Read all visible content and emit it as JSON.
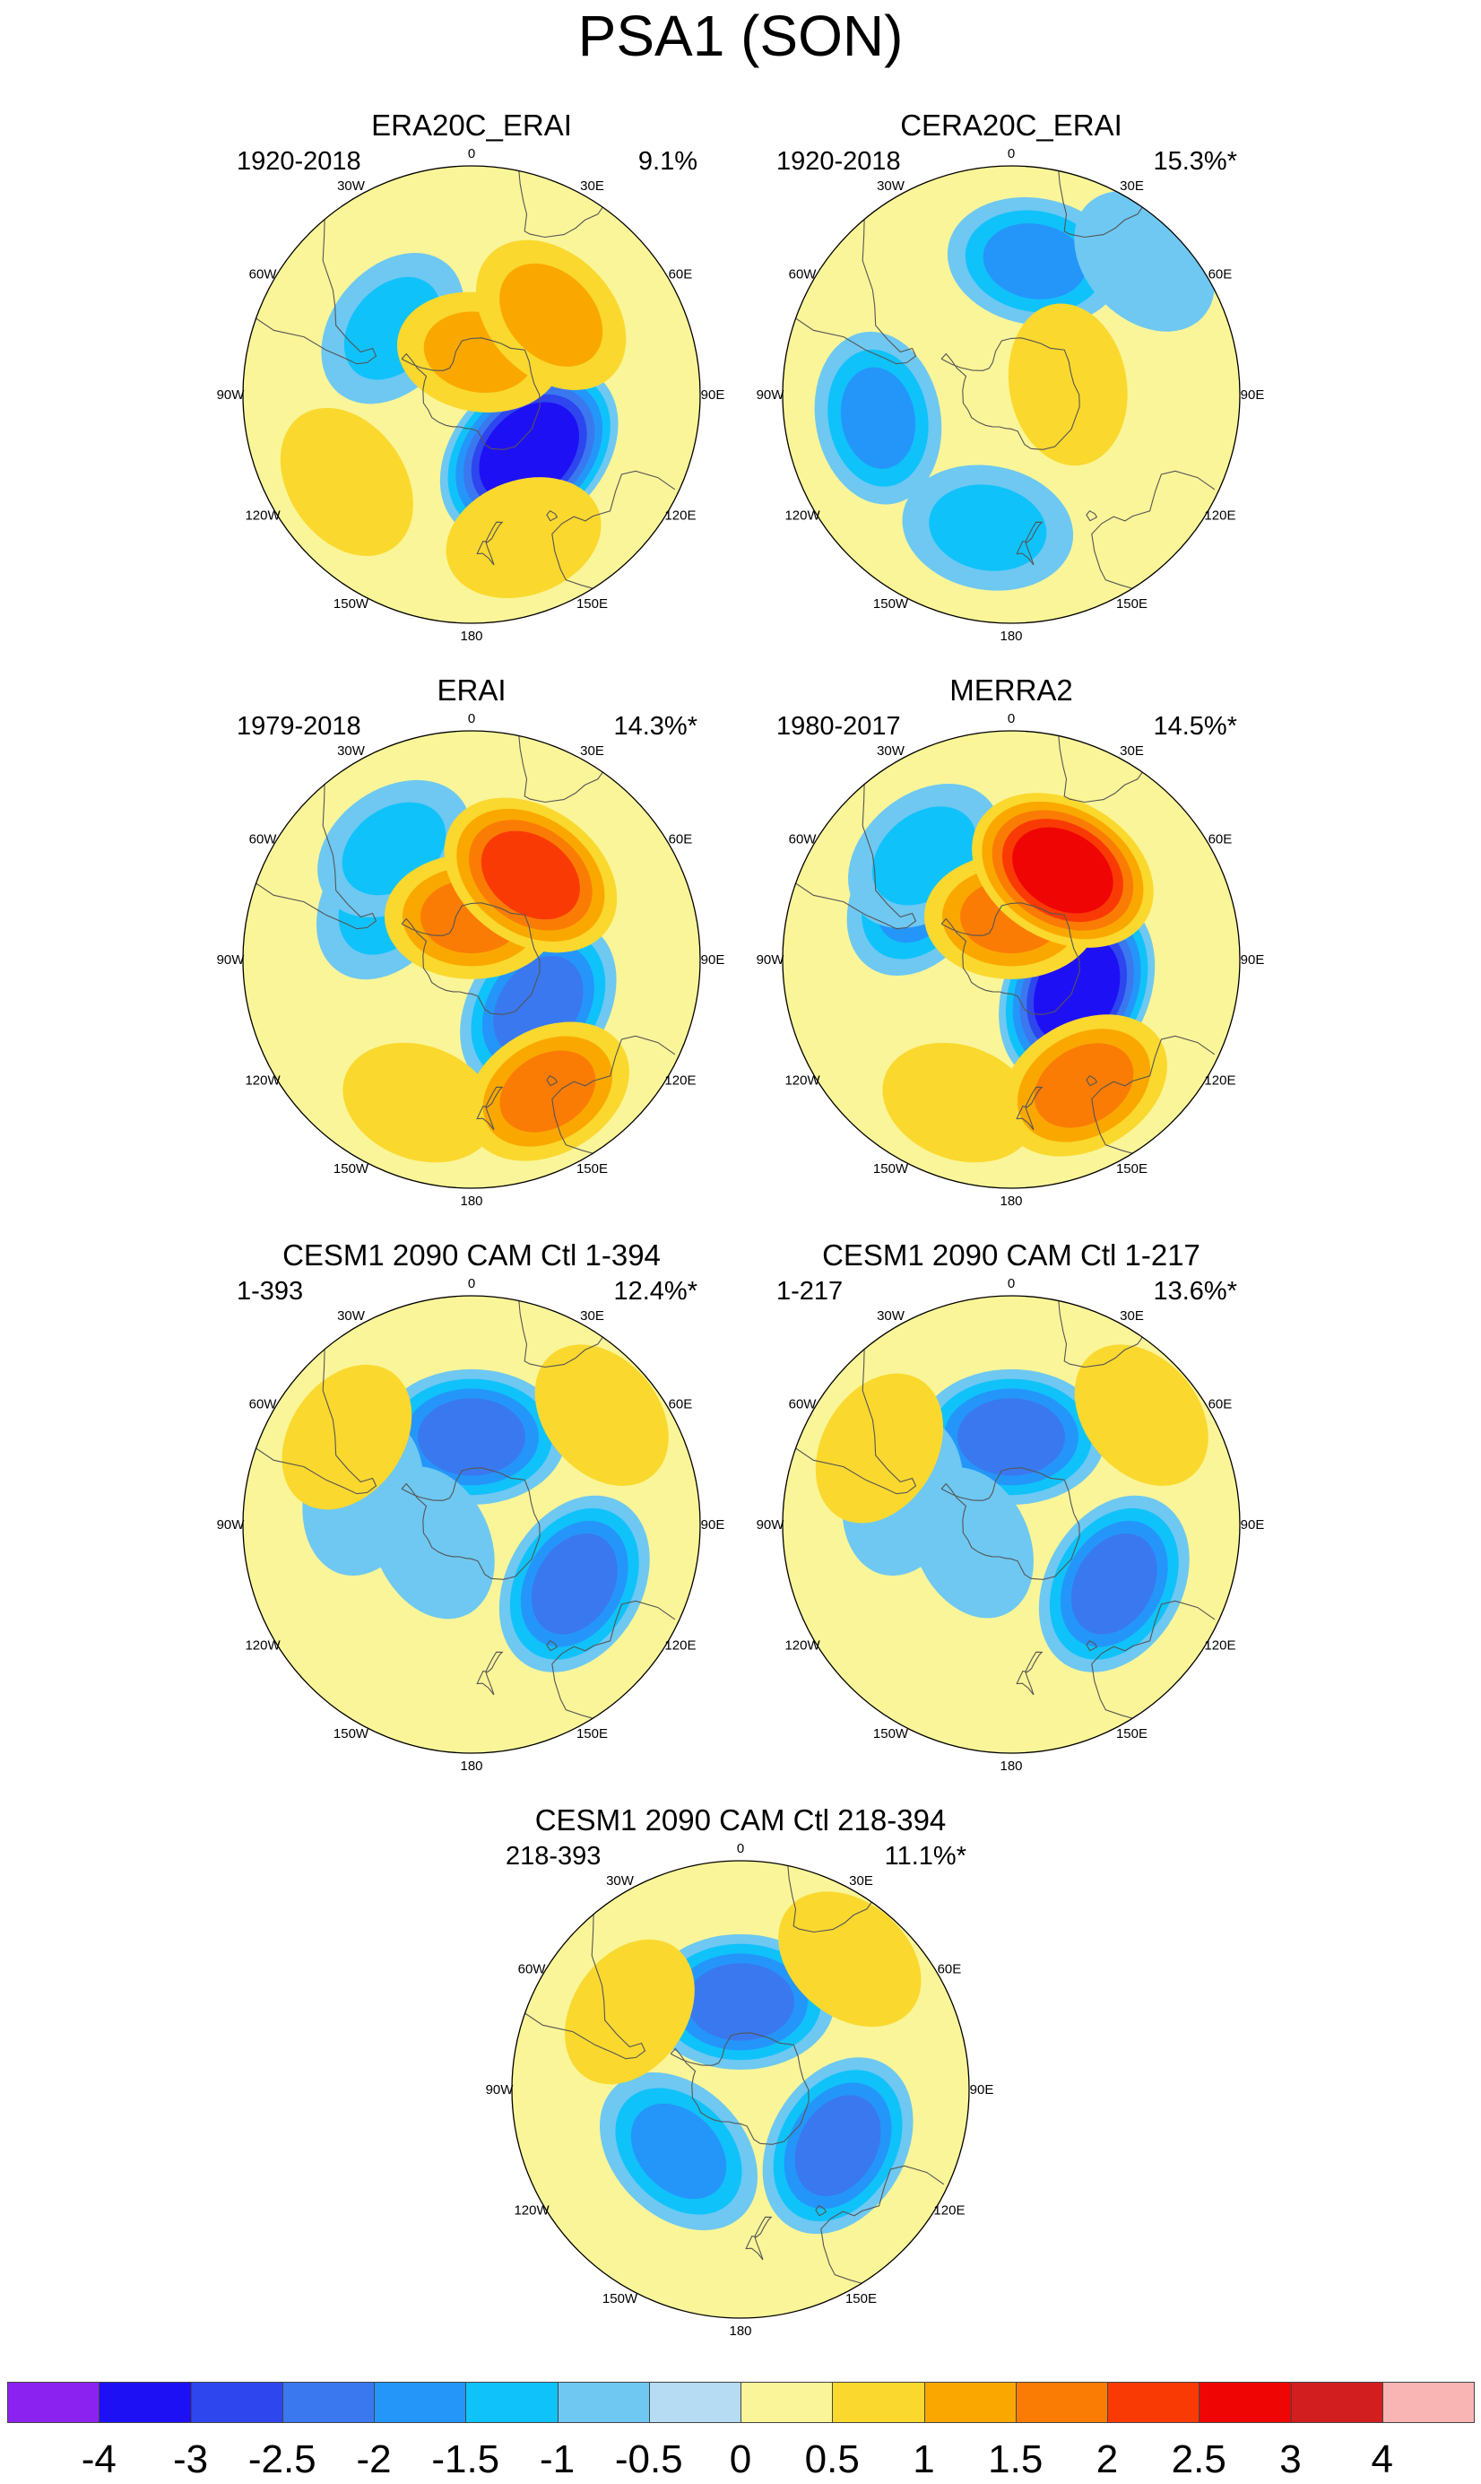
{
  "figure": {
    "title": "PSA1 (SON)"
  },
  "panels": [
    {
      "title": "ERA20C_ERAI",
      "period": "1920-2018",
      "variance": "9.1%",
      "pattern": "era20c"
    },
    {
      "title": "CERA20C_ERAI",
      "period": "1920-2018",
      "variance": "15.3%*",
      "pattern": "cera20c"
    },
    {
      "title": "ERAI",
      "period": "1979-2018",
      "variance": "14.3%*",
      "pattern": "erai"
    },
    {
      "title": "MERRA2",
      "period": "1980-2017",
      "variance": "14.5%*",
      "pattern": "merra2"
    },
    {
      "title": "CESM1 2090 CAM Ctl 1-394",
      "period": "1-393",
      "variance": "12.4%*",
      "pattern": "cesm_full"
    },
    {
      "title": "CESM1 2090 CAM Ctl 1-217",
      "period": "1-217",
      "variance": "13.6%*",
      "pattern": "cesm_a"
    },
    {
      "title": "CESM1 2090 CAM Ctl 218-394",
      "period": "218-393",
      "variance": "11.1%*",
      "pattern": "cesm_b"
    }
  ],
  "longitude_labels": [
    "0",
    "30E",
    "60E",
    "90E",
    "120E",
    "150E",
    "180",
    "150W",
    "120W",
    "90W",
    "60W",
    "30W"
  ],
  "colorbar": {
    "levels": [
      "-4",
      "-3",
      "-2.5",
      "-2",
      "-1.5",
      "-1",
      "-0.5",
      "0",
      "0.5",
      "1",
      "1.5",
      "2",
      "2.5",
      "3",
      "4"
    ],
    "colors": [
      "#8B22F0",
      "#1E10F5",
      "#2E46EE",
      "#3A78F0",
      "#2496FA",
      "#10C2FA",
      "#6EC8F2",
      "#B5DCF2",
      "#FAF598",
      "#FAD82E",
      "#FAA800",
      "#FA7C05",
      "#FA3A05",
      "#F00505",
      "#D21E1E",
      "#F9B4B4"
    ]
  },
  "chart_data": {
    "type": "heatmap",
    "projection": "south-polar-stereographic",
    "variable": "PSA1 (SON)",
    "contour_levels": [
      -4,
      -3,
      -2.5,
      -2,
      -1.5,
      -1,
      -0.5,
      0,
      0.5,
      1,
      1.5,
      2,
      2.5,
      3,
      4
    ],
    "anomaly_centers": {
      "era20c": [
        {
          "lon": 135,
          "lat": -62,
          "value": -3.2
        },
        {
          "lon": 45,
          "lat": -52,
          "value": 1.4
        },
        {
          "lon": -50,
          "lat": -55,
          "value": -1.2
        },
        {
          "lon": 10,
          "lat": -75,
          "value": 1.0
        },
        {
          "lon": -125,
          "lat": -40,
          "value": 0.8
        },
        {
          "lon": 160,
          "lat": -40,
          "value": 0.7
        },
        {
          "lon": -160,
          "lat": -35,
          "value": -0.4
        }
      ],
      "cera20c": [
        {
          "lon": 10,
          "lat": -45,
          "value": -1.6
        },
        {
          "lon": -100,
          "lat": -45,
          "value": -1.5
        },
        {
          "lon": -170,
          "lat": -45,
          "value": -1.4
        },
        {
          "lon": 80,
          "lat": -70,
          "value": 0.9
        },
        {
          "lon": 45,
          "lat": -30,
          "value": -0.8
        }
      ],
      "erai": [
        {
          "lon": 125,
          "lat": -62,
          "value": -2.4
        },
        {
          "lon": 35,
          "lat": -55,
          "value": 2.3
        },
        {
          "lon": -35,
          "lat": -45,
          "value": -1.1
        },
        {
          "lon": -55,
          "lat": -55,
          "value": -1.4
        },
        {
          "lon": 0,
          "lat": -75,
          "value": 1.5
        },
        {
          "lon": 150,
          "lat": -40,
          "value": 1.5
        },
        {
          "lon": -160,
          "lat": -40,
          "value": 0.6
        }
      ],
      "merra2": [
        {
          "lon": 115,
          "lat": -65,
          "value": -3.0
        },
        {
          "lon": 30,
          "lat": -55,
          "value": 2.6
        },
        {
          "lon": -40,
          "lat": -45,
          "value": -1.3
        },
        {
          "lon": -55,
          "lat": -52,
          "value": -1.6
        },
        {
          "lon": 0,
          "lat": -75,
          "value": 1.5
        },
        {
          "lon": 150,
          "lat": -42,
          "value": 1.7
        },
        {
          "lon": -160,
          "lat": -40,
          "value": 0.6
        }
      ],
      "cesm_full": [
        {
          "lon": 120,
          "lat": -50,
          "value": -2.3
        },
        {
          "lon": 0,
          "lat": -60,
          "value": -2.3
        },
        {
          "lon": -75,
          "lat": -52,
          "value": -0.9
        },
        {
          "lon": -115,
          "lat": -75,
          "value": -0.7
        },
        {
          "lon": 50,
          "lat": -35,
          "value": 0.6
        },
        {
          "lon": -55,
          "lat": -40,
          "value": 0.6
        }
      ],
      "cesm_a": [
        {
          "lon": 120,
          "lat": -50,
          "value": -2.3
        },
        {
          "lon": 0,
          "lat": -60,
          "value": -2.3
        },
        {
          "lon": -75,
          "lat": -52,
          "value": -0.9
        },
        {
          "lon": -115,
          "lat": -75,
          "value": -0.6
        },
        {
          "lon": 50,
          "lat": -35,
          "value": 0.6
        },
        {
          "lon": -60,
          "lat": -40,
          "value": 0.7
        }
      ],
      "cesm_b": [
        {
          "lon": 120,
          "lat": -52,
          "value": -2.3
        },
        {
          "lon": 0,
          "lat": -60,
          "value": -2.3
        },
        {
          "lon": -135,
          "lat": -60,
          "value": -1.9
        },
        {
          "lon": 40,
          "lat": -35,
          "value": 0.7
        },
        {
          "lon": -55,
          "lat": -45,
          "value": 0.6
        }
      ]
    }
  }
}
